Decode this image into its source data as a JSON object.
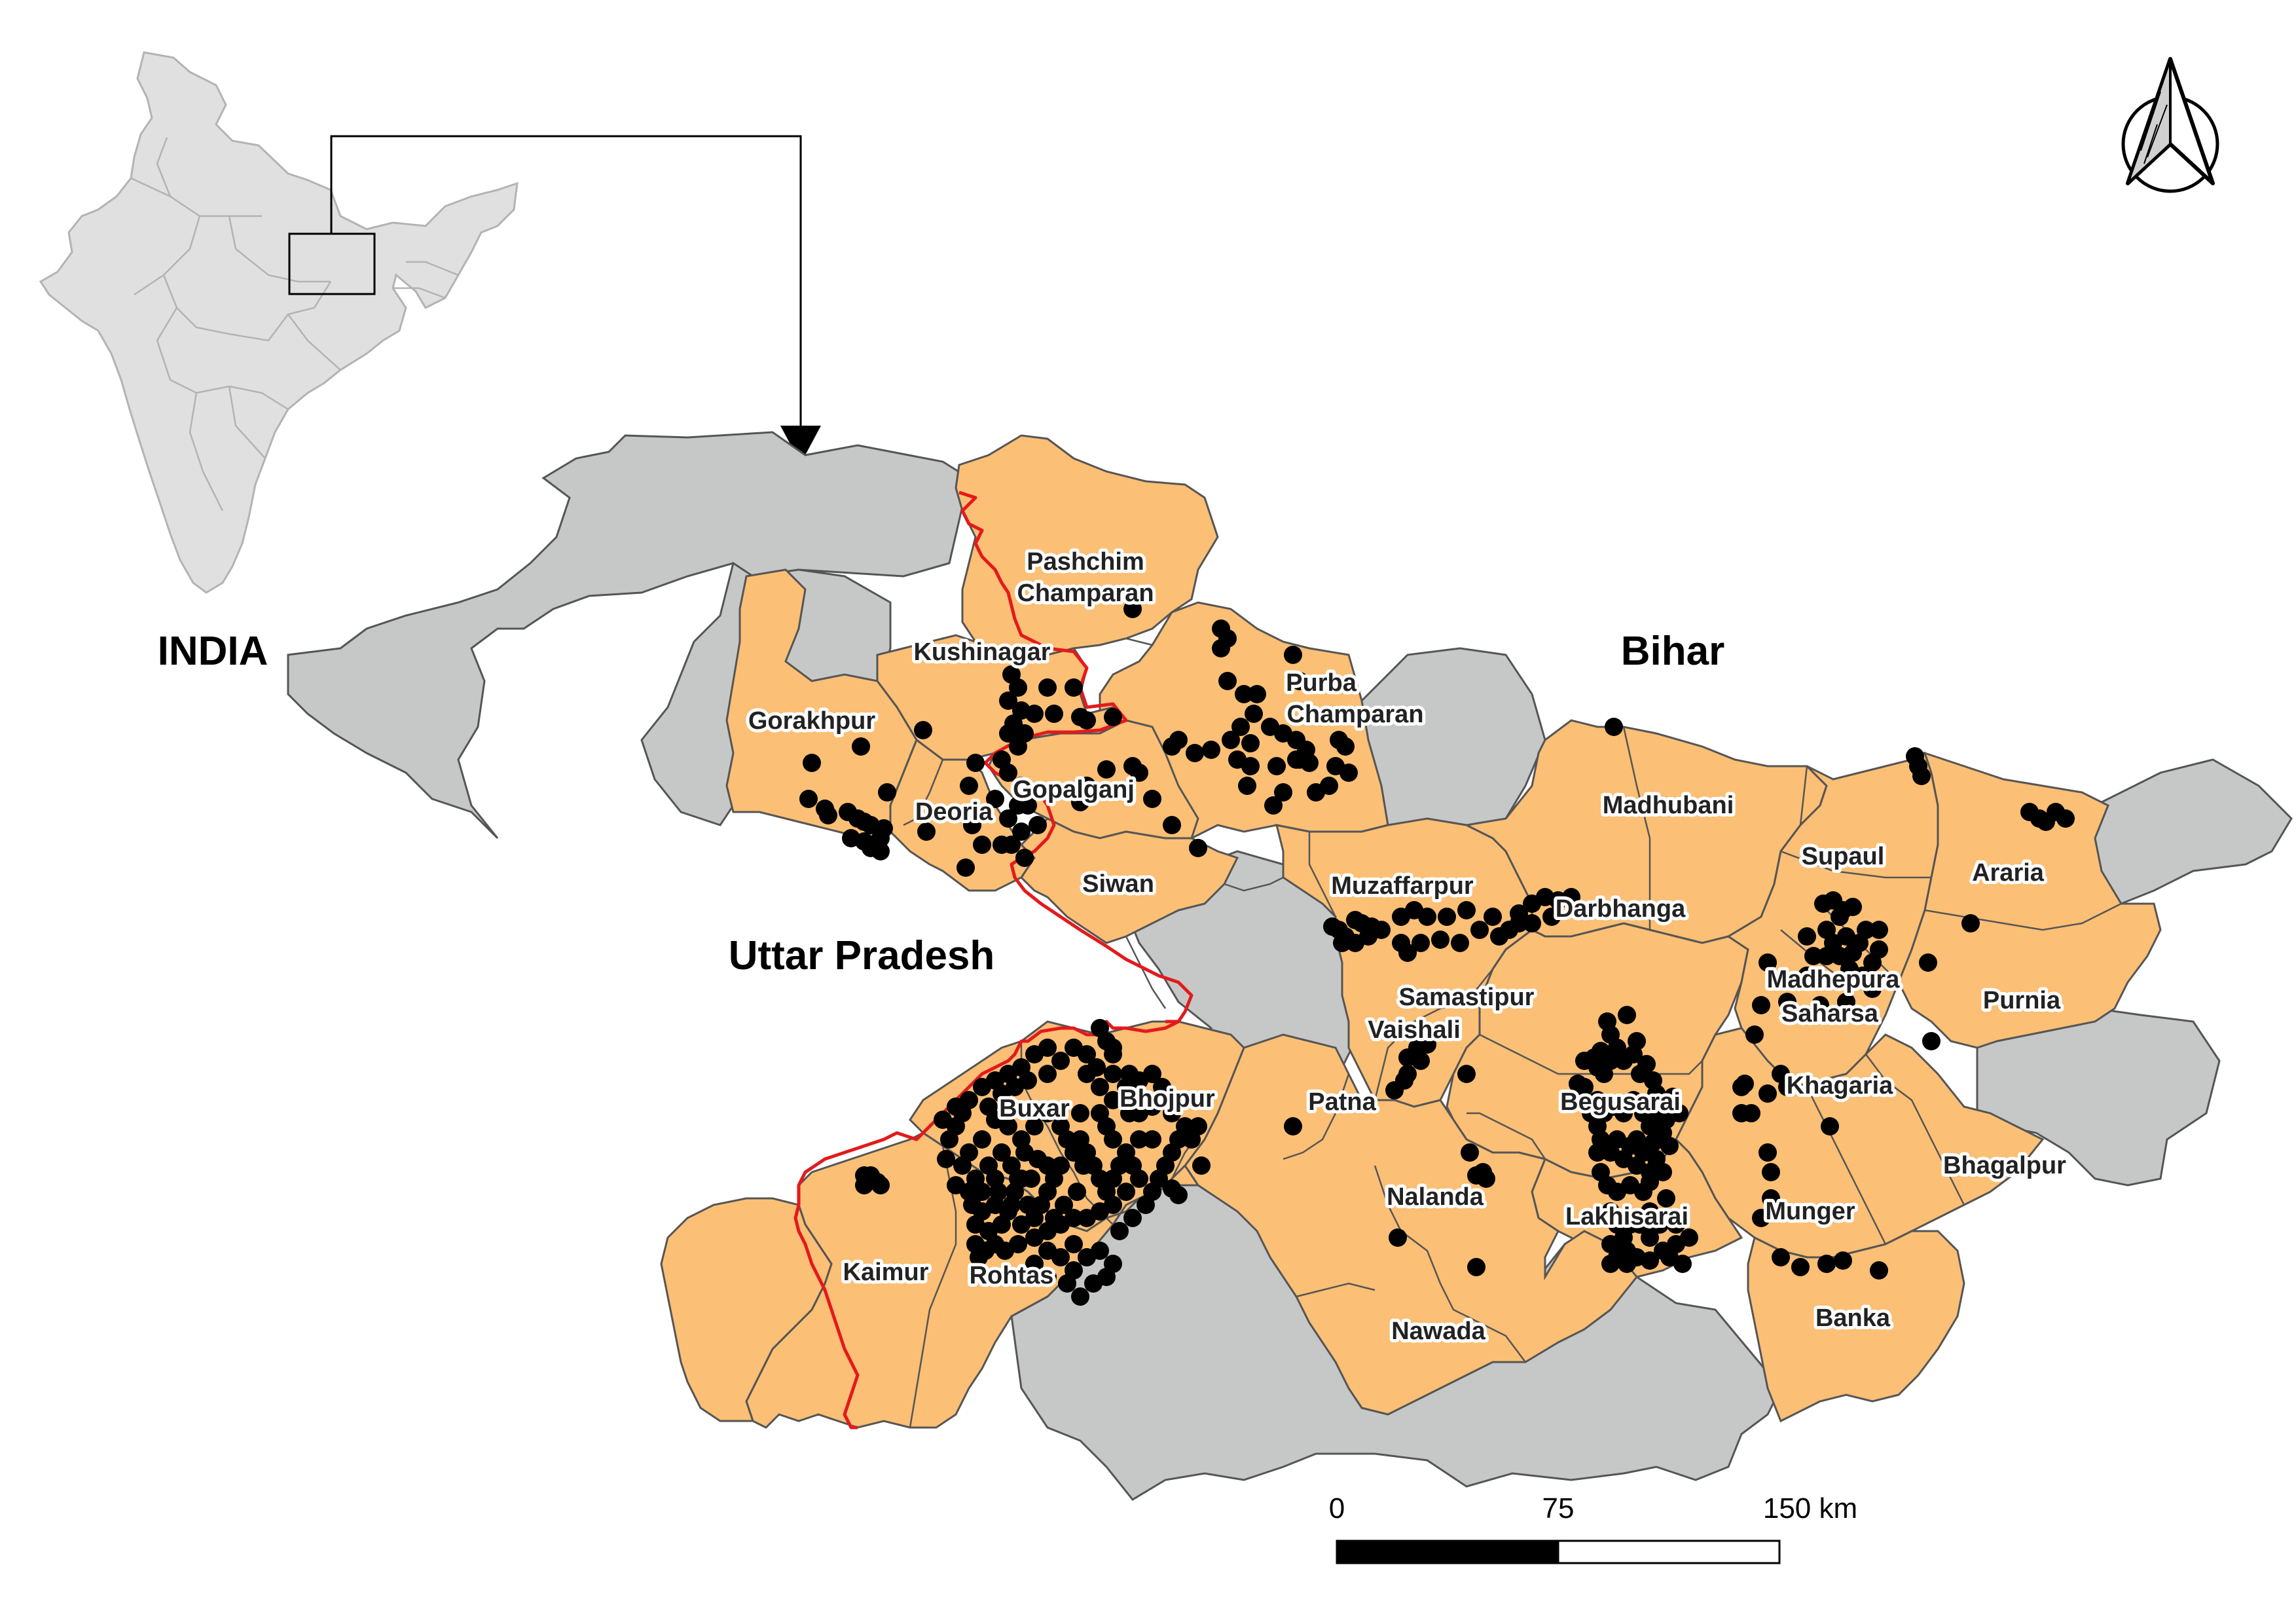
{
  "inset": {
    "label": "INDIA"
  },
  "main_map": {
    "state_labels": {
      "bihar": "Bihar",
      "uttar_pradesh": "Uttar Pradesh"
    },
    "districts": [
      "Pashchim",
      "Champaran",
      "Kushinagar",
      "Purba",
      "Champaran",
      "Gorakhpur",
      "Gopalganj",
      "Deoria",
      "Siwan",
      "Madhubani",
      "Supaul",
      "Araria",
      "Muzaffarpur",
      "Darbhanga",
      "Madhepura",
      "Saharsa",
      "Samastipur",
      "Purnia",
      "Vaishali",
      "Begusarai",
      "Khagaria",
      "Buxar",
      "Bhojpur",
      "Patna",
      "Bhagalpur",
      "Nalanda",
      "Lakhisarai",
      "Munger",
      "Kaimur",
      "Rohtas",
      "Banka",
      "Nawada"
    ]
  },
  "scale_bar": {
    "ticks": [
      "0",
      "75",
      "150 km"
    ]
  },
  "colors": {
    "study_area_fill": "#fbbf75",
    "context_fill": "#c6c8c8",
    "boundary_highlight": "#e31a1c",
    "points": "#000000",
    "inset_fill": "#e0e0e0"
  },
  "icons": {
    "north_arrow": "north-arrow-icon"
  }
}
